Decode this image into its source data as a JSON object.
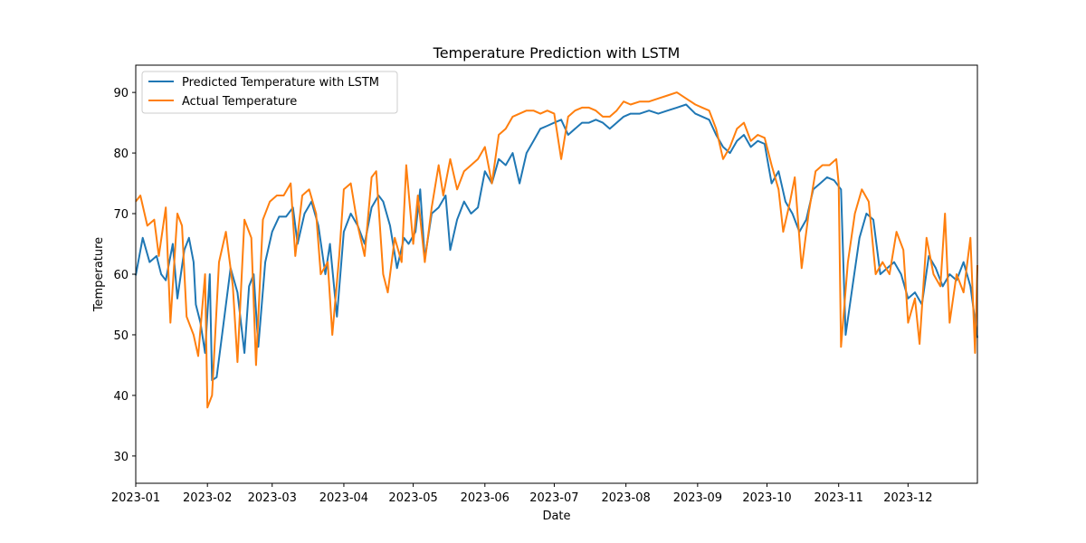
{
  "chart_data": {
    "type": "line",
    "title": "Temperature Prediction with LSTM",
    "xlabel": "Date",
    "ylabel": "Temperature",
    "x_ticks": [
      "2023-01",
      "2023-02",
      "2023-03",
      "2023-04",
      "2023-05",
      "2023-06",
      "2023-07",
      "2023-08",
      "2023-09",
      "2023-10",
      "2023-11",
      "2023-12"
    ],
    "y_ticks": [
      30,
      40,
      50,
      60,
      70,
      80,
      90
    ],
    "xlim": [
      "2023-01-01",
      "2023-12-31"
    ],
    "ylim": [
      25.5,
      94.5
    ],
    "grid": false,
    "legend_position": "top-left",
    "series": [
      {
        "name": "Predicted Temperature with LSTM",
        "color": "#1f77b4",
        "points": [
          [
            "2023-01-01",
            59.8
          ],
          [
            "2023-01-04",
            66
          ],
          [
            "2023-01-07",
            62
          ],
          [
            "2023-01-10",
            63
          ],
          [
            "2023-01-12",
            60
          ],
          [
            "2023-01-14",
            59
          ],
          [
            "2023-01-17",
            65
          ],
          [
            "2023-01-19",
            56
          ],
          [
            "2023-01-22",
            64
          ],
          [
            "2023-01-24",
            66
          ],
          [
            "2023-01-26",
            62
          ],
          [
            "2023-01-27",
            55
          ],
          [
            "2023-01-29",
            52
          ],
          [
            "2023-01-31",
            47
          ],
          [
            "2023-02-02",
            60
          ],
          [
            "2023-02-03",
            42.5
          ],
          [
            "2023-02-05",
            43
          ],
          [
            "2023-02-08",
            52
          ],
          [
            "2023-02-11",
            61
          ],
          [
            "2023-02-14",
            57
          ],
          [
            "2023-02-17",
            47
          ],
          [
            "2023-02-19",
            58
          ],
          [
            "2023-02-21",
            60
          ],
          [
            "2023-02-23",
            48
          ],
          [
            "2023-02-26",
            62
          ],
          [
            "2023-03-01",
            67
          ],
          [
            "2023-03-04",
            69.5
          ],
          [
            "2023-03-07",
            69.5
          ],
          [
            "2023-03-10",
            71
          ],
          [
            "2023-03-12",
            65
          ],
          [
            "2023-03-15",
            70
          ],
          [
            "2023-03-18",
            72
          ],
          [
            "2023-03-21",
            68
          ],
          [
            "2023-03-24",
            60
          ],
          [
            "2023-03-26",
            65
          ],
          [
            "2023-03-29",
            53
          ],
          [
            "2023-04-01",
            67
          ],
          [
            "2023-04-04",
            70
          ],
          [
            "2023-04-07",
            68
          ],
          [
            "2023-04-10",
            65
          ],
          [
            "2023-04-13",
            71
          ],
          [
            "2023-04-16",
            73
          ],
          [
            "2023-04-18",
            72
          ],
          [
            "2023-04-21",
            68
          ],
          [
            "2023-04-24",
            61
          ],
          [
            "2023-04-27",
            66
          ],
          [
            "2023-04-29",
            65
          ],
          [
            "2023-05-02",
            67
          ],
          [
            "2023-05-04",
            74
          ],
          [
            "2023-05-06",
            62.5
          ],
          [
            "2023-05-09",
            70
          ],
          [
            "2023-05-12",
            71
          ],
          [
            "2023-05-15",
            73
          ],
          [
            "2023-05-17",
            64
          ],
          [
            "2023-05-20",
            69
          ],
          [
            "2023-05-23",
            72
          ],
          [
            "2023-05-26",
            70
          ],
          [
            "2023-05-29",
            71
          ],
          [
            "2023-06-01",
            77
          ],
          [
            "2023-06-04",
            75
          ],
          [
            "2023-06-07",
            79
          ],
          [
            "2023-06-10",
            78
          ],
          [
            "2023-06-13",
            80
          ],
          [
            "2023-06-16",
            75
          ],
          [
            "2023-06-19",
            80
          ],
          [
            "2023-06-22",
            82
          ],
          [
            "2023-06-25",
            84
          ],
          [
            "2023-06-28",
            84.5
          ],
          [
            "2023-07-01",
            85
          ],
          [
            "2023-07-04",
            85.5
          ],
          [
            "2023-07-07",
            83
          ],
          [
            "2023-07-10",
            84
          ],
          [
            "2023-07-13",
            85
          ],
          [
            "2023-07-16",
            85
          ],
          [
            "2023-07-19",
            85.5
          ],
          [
            "2023-07-22",
            85
          ],
          [
            "2023-07-25",
            84
          ],
          [
            "2023-07-28",
            85
          ],
          [
            "2023-07-31",
            86
          ],
          [
            "2023-08-03",
            86.5
          ],
          [
            "2023-08-07",
            86.5
          ],
          [
            "2023-08-11",
            87
          ],
          [
            "2023-08-15",
            86.5
          ],
          [
            "2023-08-19",
            87
          ],
          [
            "2023-08-23",
            87.5
          ],
          [
            "2023-08-27",
            88
          ],
          [
            "2023-08-31",
            86.5
          ],
          [
            "2023-09-03",
            86
          ],
          [
            "2023-09-06",
            85.5
          ],
          [
            "2023-09-09",
            83
          ],
          [
            "2023-09-12",
            81
          ],
          [
            "2023-09-15",
            80
          ],
          [
            "2023-09-18",
            82
          ],
          [
            "2023-09-21",
            83
          ],
          [
            "2023-09-24",
            81
          ],
          [
            "2023-09-27",
            82
          ],
          [
            "2023-09-30",
            81.5
          ],
          [
            "2023-10-03",
            75
          ],
          [
            "2023-10-06",
            77
          ],
          [
            "2023-10-09",
            72
          ],
          [
            "2023-10-12",
            70
          ],
          [
            "2023-10-15",
            67
          ],
          [
            "2023-10-18",
            69
          ],
          [
            "2023-10-21",
            74
          ],
          [
            "2023-10-24",
            75
          ],
          [
            "2023-10-27",
            76
          ],
          [
            "2023-10-30",
            75.5
          ],
          [
            "2023-11-02",
            74
          ],
          [
            "2023-11-04",
            50
          ],
          [
            "2023-11-07",
            58
          ],
          [
            "2023-11-10",
            66
          ],
          [
            "2023-11-13",
            70
          ],
          [
            "2023-11-16",
            69
          ],
          [
            "2023-11-19",
            60
          ],
          [
            "2023-11-22",
            61
          ],
          [
            "2023-11-25",
            62
          ],
          [
            "2023-11-28",
            60
          ],
          [
            "2023-12-01",
            56
          ],
          [
            "2023-12-04",
            57
          ],
          [
            "2023-12-07",
            55
          ],
          [
            "2023-12-10",
            63
          ],
          [
            "2023-12-13",
            61
          ],
          [
            "2023-12-16",
            58
          ],
          [
            "2023-12-19",
            60
          ],
          [
            "2023-12-22",
            59
          ],
          [
            "2023-12-25",
            62
          ],
          [
            "2023-12-28",
            58
          ],
          [
            "2023-12-31",
            49.5
          ]
        ]
      },
      {
        "name": "Actual Temperature",
        "color": "#ff7f0e",
        "points": [
          [
            "2023-01-01",
            72
          ],
          [
            "2023-01-03",
            73
          ],
          [
            "2023-01-06",
            68
          ],
          [
            "2023-01-09",
            69
          ],
          [
            "2023-01-11",
            63
          ],
          [
            "2023-01-14",
            71
          ],
          [
            "2023-01-16",
            52
          ],
          [
            "2023-01-19",
            70
          ],
          [
            "2023-01-21",
            68
          ],
          [
            "2023-01-23",
            53
          ],
          [
            "2023-01-26",
            50
          ],
          [
            "2023-01-28",
            46.5
          ],
          [
            "2023-01-31",
            60
          ],
          [
            "2023-02-01",
            38
          ],
          [
            "2023-02-03",
            40
          ],
          [
            "2023-02-06",
            62
          ],
          [
            "2023-02-09",
            67
          ],
          [
            "2023-02-12",
            58
          ],
          [
            "2023-02-14",
            45.5
          ],
          [
            "2023-02-17",
            69
          ],
          [
            "2023-02-20",
            66
          ],
          [
            "2023-02-22",
            45
          ],
          [
            "2023-02-25",
            69
          ],
          [
            "2023-02-28",
            72
          ],
          [
            "2023-03-03",
            73
          ],
          [
            "2023-03-06",
            73
          ],
          [
            "2023-03-09",
            75
          ],
          [
            "2023-03-11",
            63
          ],
          [
            "2023-03-14",
            73
          ],
          [
            "2023-03-17",
            74
          ],
          [
            "2023-03-20",
            70
          ],
          [
            "2023-03-22",
            60
          ],
          [
            "2023-03-25",
            62
          ],
          [
            "2023-03-27",
            50
          ],
          [
            "2023-03-30",
            63
          ],
          [
            "2023-04-01",
            74
          ],
          [
            "2023-04-04",
            75
          ],
          [
            "2023-04-07",
            68
          ],
          [
            "2023-04-10",
            63
          ],
          [
            "2023-04-13",
            76
          ],
          [
            "2023-04-15",
            77
          ],
          [
            "2023-04-18",
            60
          ],
          [
            "2023-04-20",
            57
          ],
          [
            "2023-04-23",
            66
          ],
          [
            "2023-04-26",
            62
          ],
          [
            "2023-04-28",
            78
          ],
          [
            "2023-05-01",
            65
          ],
          [
            "2023-05-03",
            73
          ],
          [
            "2023-05-06",
            62
          ],
          [
            "2023-05-09",
            71
          ],
          [
            "2023-05-12",
            78
          ],
          [
            "2023-05-14",
            73
          ],
          [
            "2023-05-17",
            79
          ],
          [
            "2023-05-20",
            74
          ],
          [
            "2023-05-23",
            77
          ],
          [
            "2023-05-26",
            78
          ],
          [
            "2023-05-29",
            79
          ],
          [
            "2023-06-01",
            81
          ],
          [
            "2023-06-04",
            75
          ],
          [
            "2023-06-07",
            83
          ],
          [
            "2023-06-10",
            84
          ],
          [
            "2023-06-13",
            86
          ],
          [
            "2023-06-16",
            86.5
          ],
          [
            "2023-06-19",
            87
          ],
          [
            "2023-06-22",
            87
          ],
          [
            "2023-06-25",
            86.5
          ],
          [
            "2023-06-28",
            87
          ],
          [
            "2023-07-01",
            86.5
          ],
          [
            "2023-07-04",
            79
          ],
          [
            "2023-07-07",
            86
          ],
          [
            "2023-07-10",
            87
          ],
          [
            "2023-07-13",
            87.5
          ],
          [
            "2023-07-16",
            87.5
          ],
          [
            "2023-07-19",
            87
          ],
          [
            "2023-07-22",
            86
          ],
          [
            "2023-07-25",
            86
          ],
          [
            "2023-07-28",
            87
          ],
          [
            "2023-07-31",
            88.5
          ],
          [
            "2023-08-03",
            88
          ],
          [
            "2023-08-07",
            88.5
          ],
          [
            "2023-08-11",
            88.5
          ],
          [
            "2023-08-15",
            89
          ],
          [
            "2023-08-19",
            89.5
          ],
          [
            "2023-08-23",
            90
          ],
          [
            "2023-08-27",
            89
          ],
          [
            "2023-08-31",
            88
          ],
          [
            "2023-09-03",
            87.5
          ],
          [
            "2023-09-06",
            87
          ],
          [
            "2023-09-09",
            84
          ],
          [
            "2023-09-12",
            79
          ],
          [
            "2023-09-15",
            81
          ],
          [
            "2023-09-18",
            84
          ],
          [
            "2023-09-21",
            85
          ],
          [
            "2023-09-24",
            82
          ],
          [
            "2023-09-27",
            83
          ],
          [
            "2023-09-30",
            82.5
          ],
          [
            "2023-10-03",
            78
          ],
          [
            "2023-10-06",
            74
          ],
          [
            "2023-10-08",
            67
          ],
          [
            "2023-10-11",
            72
          ],
          [
            "2023-10-13",
            76
          ],
          [
            "2023-10-16",
            61
          ],
          [
            "2023-10-19",
            70
          ],
          [
            "2023-10-22",
            77
          ],
          [
            "2023-10-25",
            78
          ],
          [
            "2023-10-28",
            78
          ],
          [
            "2023-10-31",
            79
          ],
          [
            "2023-11-01",
            75
          ],
          [
            "2023-11-02",
            48
          ],
          [
            "2023-11-05",
            62
          ],
          [
            "2023-11-08",
            70
          ],
          [
            "2023-11-11",
            74
          ],
          [
            "2023-11-14",
            72
          ],
          [
            "2023-11-17",
            60
          ],
          [
            "2023-11-20",
            62
          ],
          [
            "2023-11-23",
            60
          ],
          [
            "2023-11-26",
            67
          ],
          [
            "2023-11-29",
            64
          ],
          [
            "2023-12-01",
            52
          ],
          [
            "2023-12-04",
            56
          ],
          [
            "2023-12-06",
            48.5
          ],
          [
            "2023-12-09",
            66
          ],
          [
            "2023-12-12",
            60
          ],
          [
            "2023-12-15",
            58
          ],
          [
            "2023-12-17",
            70
          ],
          [
            "2023-12-19",
            52
          ],
          [
            "2023-12-22",
            60
          ],
          [
            "2023-12-25",
            57
          ],
          [
            "2023-12-28",
            66
          ],
          [
            "2023-12-30",
            47
          ],
          [
            "2023-12-31",
            61.5
          ]
        ]
      }
    ]
  }
}
